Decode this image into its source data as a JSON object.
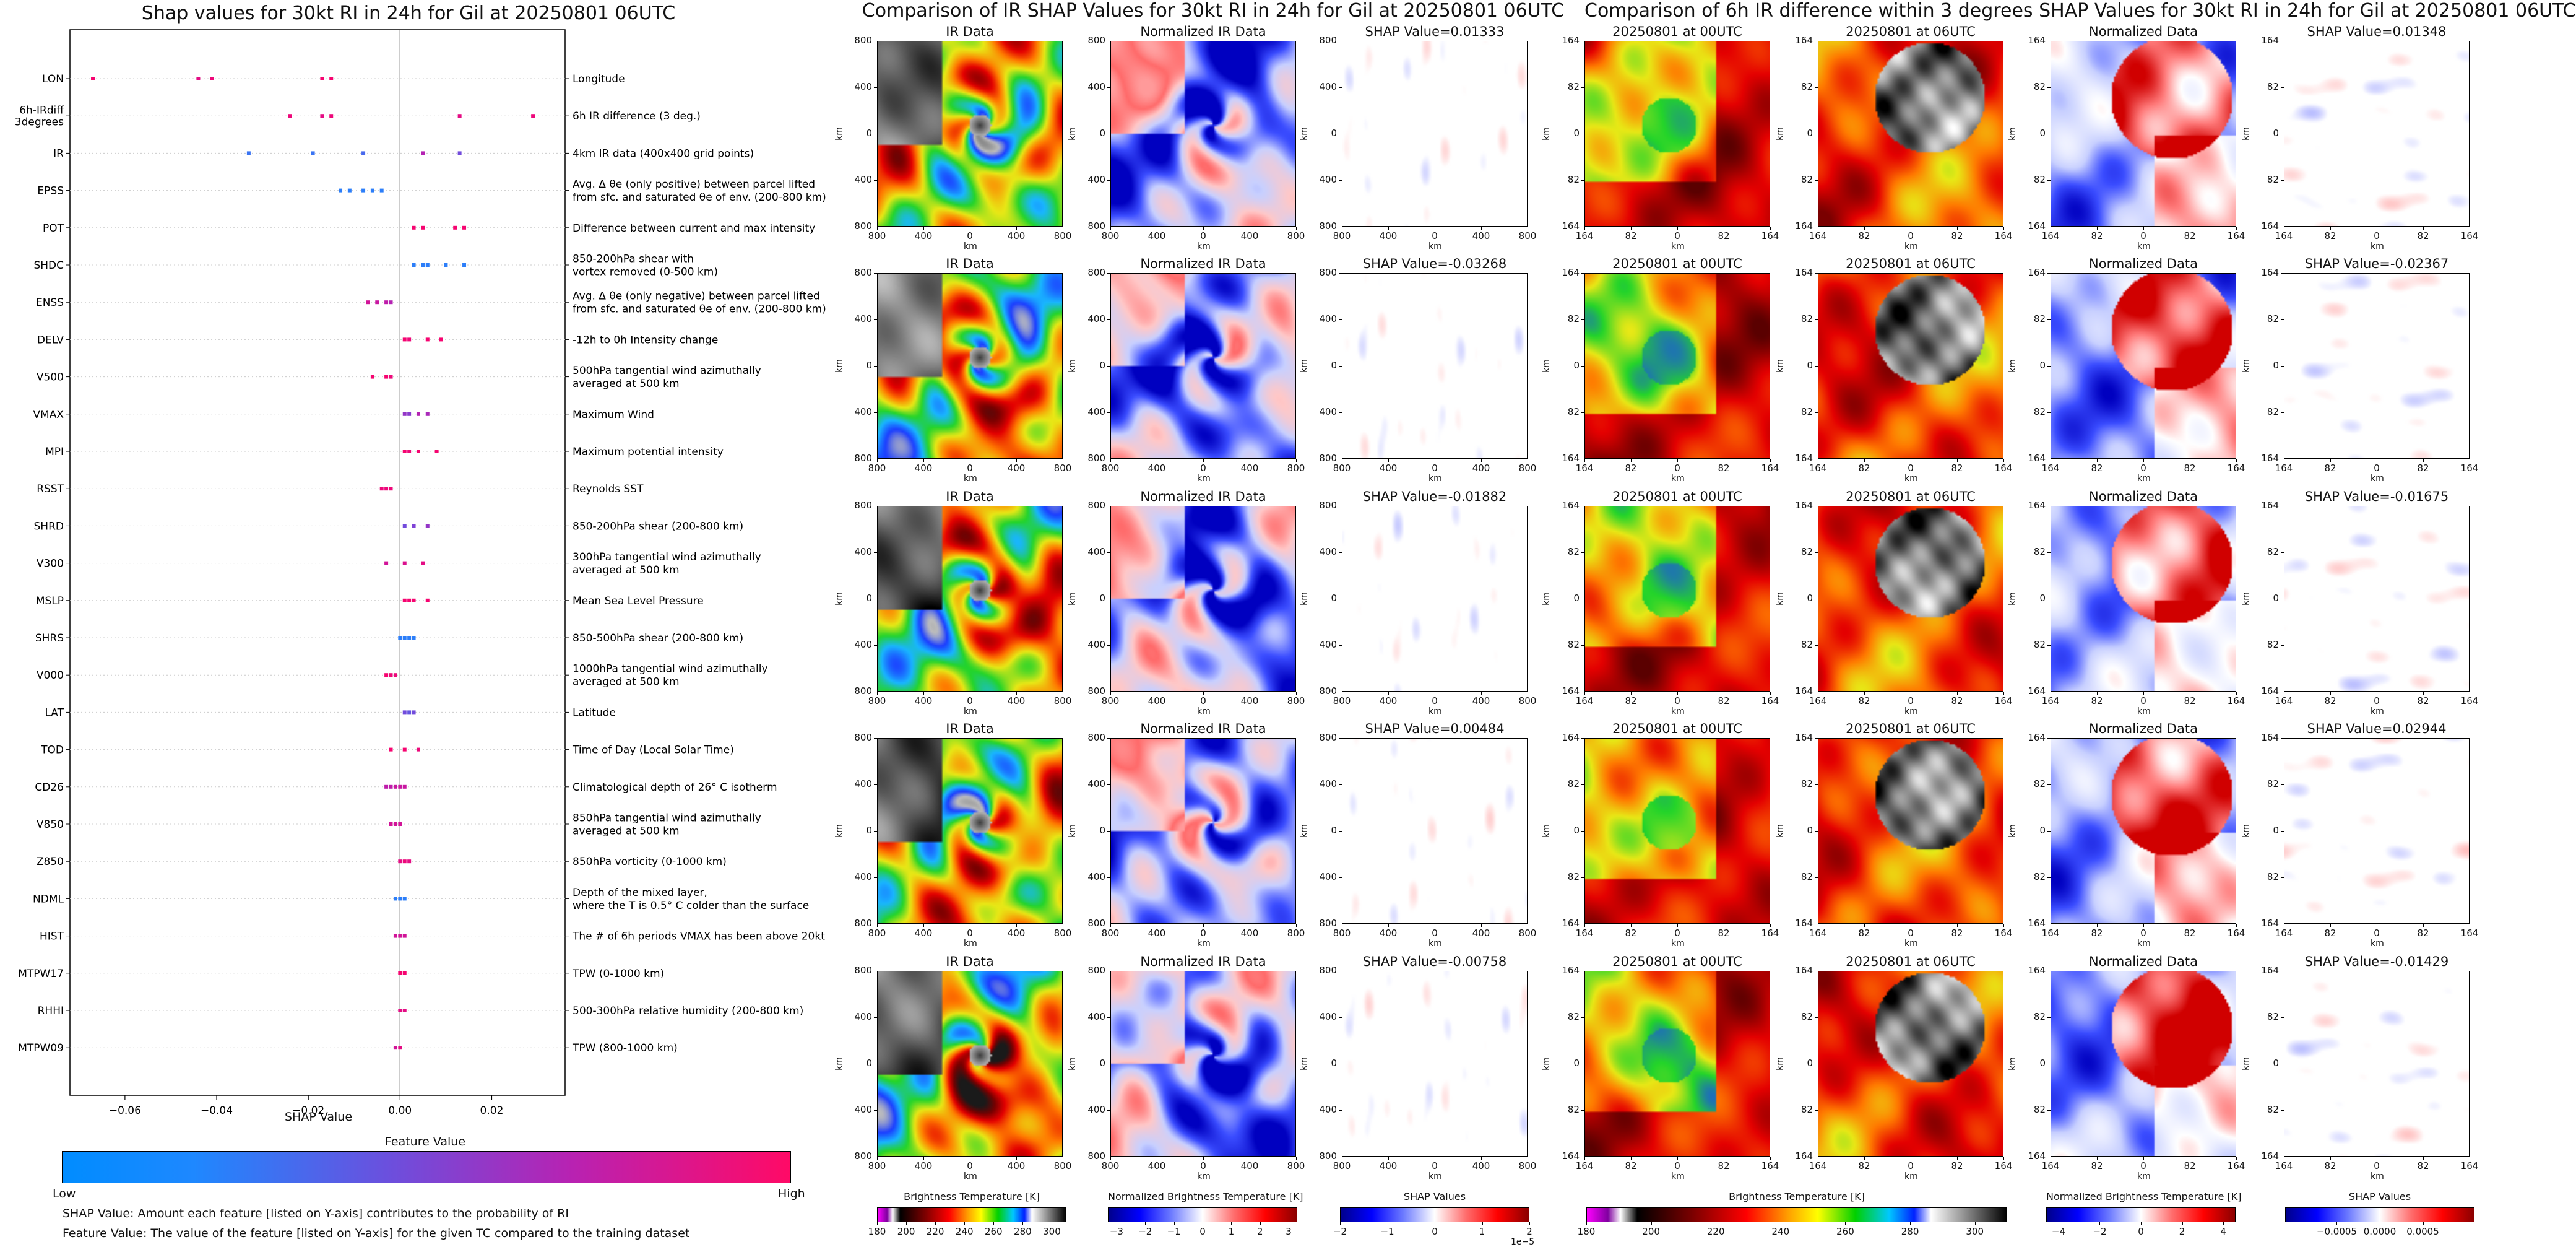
{
  "summary": {
    "title": "Shap values for 30kt RI in 24h for Gil at 20250801 06UTC",
    "xlabel": "SHAP Value",
    "colorbar_title": "Feature Value",
    "low_label": "Low",
    "high_label": "High",
    "note1": "SHAP Value: Amount each feature [listed on Y-axis] contributes to the probability of RI",
    "note2": "Feature Value: The value of the feature [listed on Y-axis] for the given TC compared to the training dataset"
  },
  "chart_data": [
    {
      "type": "scatter",
      "title": "Shap values for 30kt RI in 24h for Gil at 20250801 06UTC",
      "xlabel": "SHAP Value",
      "ylabel": "",
      "xlim": [
        -0.072,
        0.036
      ],
      "xticks": [
        -0.06,
        -0.04,
        -0.02,
        0.0,
        0.02
      ],
      "xtick_labels": [
        "−0.06",
        "−0.04",
        "−0.02",
        "0.00",
        "0.02"
      ],
      "colorbar": {
        "title": "Feature Value",
        "low": "Low",
        "high": "High",
        "colors": [
          "#1e88ff",
          "#7b44d8",
          "#c21aa8",
          "#ff0066"
        ]
      },
      "features": [
        {
          "name": "LON",
          "description": "Longitude",
          "points": [
            [
              -0.067,
              0.95
            ],
            [
              -0.044,
              0.85
            ],
            [
              -0.041,
              0.9
            ],
            [
              -0.017,
              0.95
            ],
            [
              -0.015,
              0.95
            ]
          ]
        },
        {
          "name": "6h-IRdiff\n3degrees",
          "description": "6h IR difference (3 deg.)",
          "points": [
            [
              -0.024,
              0.9
            ],
            [
              -0.017,
              0.85
            ],
            [
              -0.015,
              0.9
            ],
            [
              0.013,
              0.85
            ],
            [
              0.029,
              0.9
            ]
          ]
        },
        {
          "name": "IR",
          "description": "4km IR data (400x400 grid points)",
          "points": [
            [
              -0.033,
              0.1
            ],
            [
              -0.019,
              0.1
            ],
            [
              -0.008,
              0.15
            ],
            [
              0.005,
              0.6
            ],
            [
              0.013,
              0.3
            ]
          ]
        },
        {
          "name": "EPSS",
          "description": "Avg. Δ θe (only positive) between parcel lifted\nfrom sfc. and saturated θe of env. (200-800 km)",
          "points": [
            [
              -0.013,
              0.05
            ],
            [
              -0.011,
              0.05
            ],
            [
              -0.008,
              0.05
            ],
            [
              -0.006,
              0.05
            ],
            [
              -0.004,
              0.05
            ]
          ]
        },
        {
          "name": "POT",
          "description": "Difference between current and max intensity",
          "points": [
            [
              0.003,
              0.95
            ],
            [
              0.005,
              0.95
            ],
            [
              0.012,
              0.95
            ],
            [
              0.014,
              0.95
            ]
          ]
        },
        {
          "name": "SHDC",
          "description": "850-200hPa shear with\nvortex removed (0-500 km)",
          "points": [
            [
              0.003,
              0.05
            ],
            [
              0.005,
              0.05
            ],
            [
              0.006,
              0.05
            ],
            [
              0.01,
              0.05
            ],
            [
              0.014,
              0.05
            ]
          ]
        },
        {
          "name": "ENSS",
          "description": "Avg. Δ θe (only negative) between parcel lifted\nfrom sfc. and saturated θe of env. (200-800 km)",
          "points": [
            [
              -0.007,
              0.75
            ],
            [
              -0.005,
              0.7
            ],
            [
              -0.003,
              0.65
            ],
            [
              -0.002,
              0.6
            ]
          ]
        },
        {
          "name": "DELV",
          "description": "-12h to 0h Intensity change",
          "points": [
            [
              0.001,
              0.95
            ],
            [
              0.002,
              0.9
            ],
            [
              0.006,
              0.95
            ],
            [
              0.009,
              0.95
            ]
          ]
        },
        {
          "name": "V500",
          "description": "500hPa tangential wind azimuthally\naveraged at 500 km",
          "points": [
            [
              -0.006,
              0.95
            ],
            [
              -0.003,
              0.95
            ],
            [
              -0.002,
              0.9
            ]
          ]
        },
        {
          "name": "VMAX",
          "description": "Maximum Wind",
          "points": [
            [
              0.001,
              0.45
            ],
            [
              0.002,
              0.4
            ],
            [
              0.004,
              0.6
            ],
            [
              0.006,
              0.55
            ]
          ]
        },
        {
          "name": "MPI",
          "description": "Maximum potential intensity",
          "points": [
            [
              0.001,
              0.95
            ],
            [
              0.002,
              0.9
            ],
            [
              0.004,
              0.95
            ],
            [
              0.008,
              0.95
            ]
          ]
        },
        {
          "name": "RSST",
          "description": "Reynolds SST",
          "points": [
            [
              -0.004,
              0.9
            ],
            [
              -0.003,
              0.9
            ],
            [
              -0.002,
              0.9
            ]
          ]
        },
        {
          "name": "SHRD",
          "description": "850-200hPa shear (200-800 km)",
          "points": [
            [
              0.001,
              0.3
            ],
            [
              0.003,
              0.35
            ],
            [
              0.006,
              0.45
            ]
          ]
        },
        {
          "name": "V300",
          "description": "300hPa tangential wind azimuthally\naveraged at 500 km",
          "points": [
            [
              -0.003,
              0.75
            ],
            [
              0.001,
              0.8
            ],
            [
              0.005,
              0.85
            ]
          ]
        },
        {
          "name": "MSLP",
          "description": "Mean Sea Level Pressure",
          "points": [
            [
              0.001,
              0.95
            ],
            [
              0.002,
              0.95
            ],
            [
              0.003,
              0.95
            ],
            [
              0.006,
              0.95
            ]
          ]
        },
        {
          "name": "SHRS",
          "description": "850-500hPa shear (200-800 km)",
          "points": [
            [
              0.0,
              0.05
            ],
            [
              0.001,
              0.05
            ],
            [
              0.002,
              0.05
            ],
            [
              0.003,
              0.05
            ]
          ]
        },
        {
          "name": "V000",
          "description": "1000hPa tangential wind azimuthally\naveraged at 500 km",
          "points": [
            [
              -0.003,
              0.95
            ],
            [
              -0.002,
              0.9
            ],
            [
              -0.001,
              0.9
            ]
          ]
        },
        {
          "name": "LAT",
          "description": "Latitude",
          "points": [
            [
              0.001,
              0.3
            ],
            [
              0.002,
              0.25
            ],
            [
              0.003,
              0.3
            ]
          ]
        },
        {
          "name": "TOD",
          "description": "Time of Day (Local Solar Time)",
          "points": [
            [
              -0.002,
              0.95
            ],
            [
              0.001,
              0.95
            ],
            [
              0.004,
              0.9
            ]
          ]
        },
        {
          "name": "CD26",
          "description": "Climatological depth of 26° C isotherm",
          "points": [
            [
              -0.003,
              0.65
            ],
            [
              -0.002,
              0.65
            ],
            [
              -0.001,
              0.7
            ],
            [
              0.0,
              0.7
            ],
            [
              0.001,
              0.7
            ]
          ]
        },
        {
          "name": "V850",
          "description": "850hPa tangential wind azimuthally\naveraged at 500 km",
          "points": [
            [
              -0.002,
              0.75
            ],
            [
              -0.001,
              0.75
            ],
            [
              0.0,
              0.75
            ]
          ]
        },
        {
          "name": "Z850",
          "description": "850hPa vorticity (0-1000 km)",
          "points": [
            [
              0.0,
              0.85
            ],
            [
              0.001,
              0.9
            ],
            [
              0.002,
              0.85
            ]
          ]
        },
        {
          "name": "NDML",
          "description": "Depth of the mixed layer,\nwhere the T is 0.5° C colder than the surface",
          "points": [
            [
              -0.001,
              0.05
            ],
            [
              0.0,
              0.05
            ],
            [
              0.001,
              0.05
            ]
          ]
        },
        {
          "name": "HIST",
          "description": "The # of 6h periods VMAX has been above 20kt",
          "points": [
            [
              -0.001,
              0.75
            ],
            [
              0.0,
              0.75
            ],
            [
              0.001,
              0.75
            ]
          ]
        },
        {
          "name": "MTPW17",
          "description": "TPW (0-1000 km)",
          "points": [
            [
              0.0,
              0.95
            ],
            [
              0.001,
              0.95
            ]
          ]
        },
        {
          "name": "RHHI",
          "description": "500-300hPa relative humidity (200-800 km)",
          "points": [
            [
              0.0,
              0.85
            ],
            [
              0.001,
              0.85
            ]
          ]
        },
        {
          "name": "MTPW09",
          "description": "TPW (800-1000 km)",
          "points": [
            [
              -0.001,
              0.75
            ],
            [
              0.0,
              0.85
            ]
          ]
        }
      ]
    },
    {
      "type": "heatmap",
      "title": "Comparison of IR SHAP Values for 30kt RI in 24h for Gil at 20250801 06UTC",
      "columns": [
        {
          "title": "IR Data",
          "xticks": [
            "800",
            "400",
            "0",
            "400",
            "800"
          ],
          "yticks": [
            "800",
            "400",
            "0",
            "400",
            "800"
          ],
          "xlabel": "km",
          "ylabel": "km"
        },
        {
          "title": "Normalized IR Data",
          "xticks": [
            "800",
            "400",
            "0",
            "400",
            "800"
          ],
          "yticks": [
            "800",
            "400",
            "0",
            "400",
            "800"
          ],
          "xlabel": "km",
          "ylabel": "km"
        },
        {
          "title": "SHAP Value",
          "xticks": [
            "800",
            "400",
            "0",
            "400",
            "800"
          ],
          "yticks": [
            "800",
            "400",
            "0",
            "400",
            "800"
          ],
          "xlabel": "km",
          "ylabel": "km"
        }
      ],
      "row_shap_values": [
        0.01333,
        -0.03268,
        -0.01882,
        0.00484,
        -0.00758
      ],
      "row_shap_labels": [
        "SHAP Value=0.01333",
        "SHAP Value=-0.03268",
        "SHAP Value=-0.01882",
        "SHAP Value=0.00484",
        "SHAP Value=-0.00758"
      ],
      "colorbars": [
        {
          "label": "Brightness Temperature [K]",
          "ticks": [
            "180",
            "200",
            "220",
            "240",
            "260",
            "280",
            "300"
          ],
          "range": [
            180,
            310
          ]
        },
        {
          "label": "Normalized Brightness Temperature [K]",
          "ticks": [
            "−3",
            "−2",
            "−1",
            "0",
            "1",
            "2",
            "3"
          ],
          "range": [
            -3.3,
            3.3
          ]
        },
        {
          "label": "SHAP Values",
          "ticks": [
            "−2",
            "−1",
            "0",
            "1",
            "2"
          ],
          "range": [
            -2,
            2
          ],
          "multiplier": "1e−5"
        }
      ]
    },
    {
      "type": "heatmap",
      "title": "Comparison of 6h IR difference within 3 degrees SHAP Values for 30kt RI in 24h for Gil at 20250801 06UTC",
      "columns": [
        {
          "title": "20250801 at 00UTC",
          "xticks": [
            "164",
            "82",
            "0",
            "82",
            "164"
          ],
          "yticks": [
            "164",
            "82",
            "0",
            "82",
            "164"
          ],
          "xlabel": "km",
          "ylabel": "km"
        },
        {
          "title": "20250801 at 06UTC",
          "xticks": [
            "164",
            "82",
            "0",
            "82",
            "164"
          ],
          "yticks": [
            "164",
            "82",
            "0",
            "82",
            "164"
          ],
          "xlabel": "km",
          "ylabel": "km"
        },
        {
          "title": "Normalized Data",
          "xticks": [
            "164",
            "82",
            "0",
            "82",
            "164"
          ],
          "yticks": [
            "164",
            "82",
            "0",
            "82",
            "164"
          ],
          "xlabel": "km",
          "ylabel": "km"
        },
        {
          "title": "SHAP Value",
          "xticks": [
            "164",
            "82",
            "0",
            "82",
            "164"
          ],
          "yticks": [
            "164",
            "82",
            "0",
            "82",
            "164"
          ],
          "xlabel": "km",
          "ylabel": "km"
        }
      ],
      "row_shap_values": [
        0.01348,
        -0.02367,
        -0.01675,
        0.02944,
        -0.01429
      ],
      "row_shap_labels": [
        "SHAP Value=0.01348",
        "SHAP Value=-0.02367",
        "SHAP Value=-0.01675",
        "SHAP Value=0.02944",
        "SHAP Value=-0.01429"
      ],
      "colorbars": [
        {
          "label": "Brightness Temperature [K]",
          "ticks": [
            "180",
            "200",
            "220",
            "240",
            "260",
            "280",
            "300"
          ],
          "range": [
            180,
            310
          ]
        },
        {
          "label": "Normalized Brightness Temperature [K]",
          "ticks": [
            "−4",
            "−2",
            "0",
            "2",
            "4"
          ],
          "range": [
            -4.6,
            4.6
          ]
        },
        {
          "label": "SHAP Values",
          "ticks": [
            "−0.0005",
            "0.0000",
            "0.0005"
          ],
          "range": [
            -0.0011,
            0.0011
          ]
        }
      ]
    }
  ],
  "colors": {
    "low": "#1e88ff",
    "high": "#ff0066",
    "shap_neg": "#1f2bff",
    "shap_pos": "#e0202a"
  }
}
